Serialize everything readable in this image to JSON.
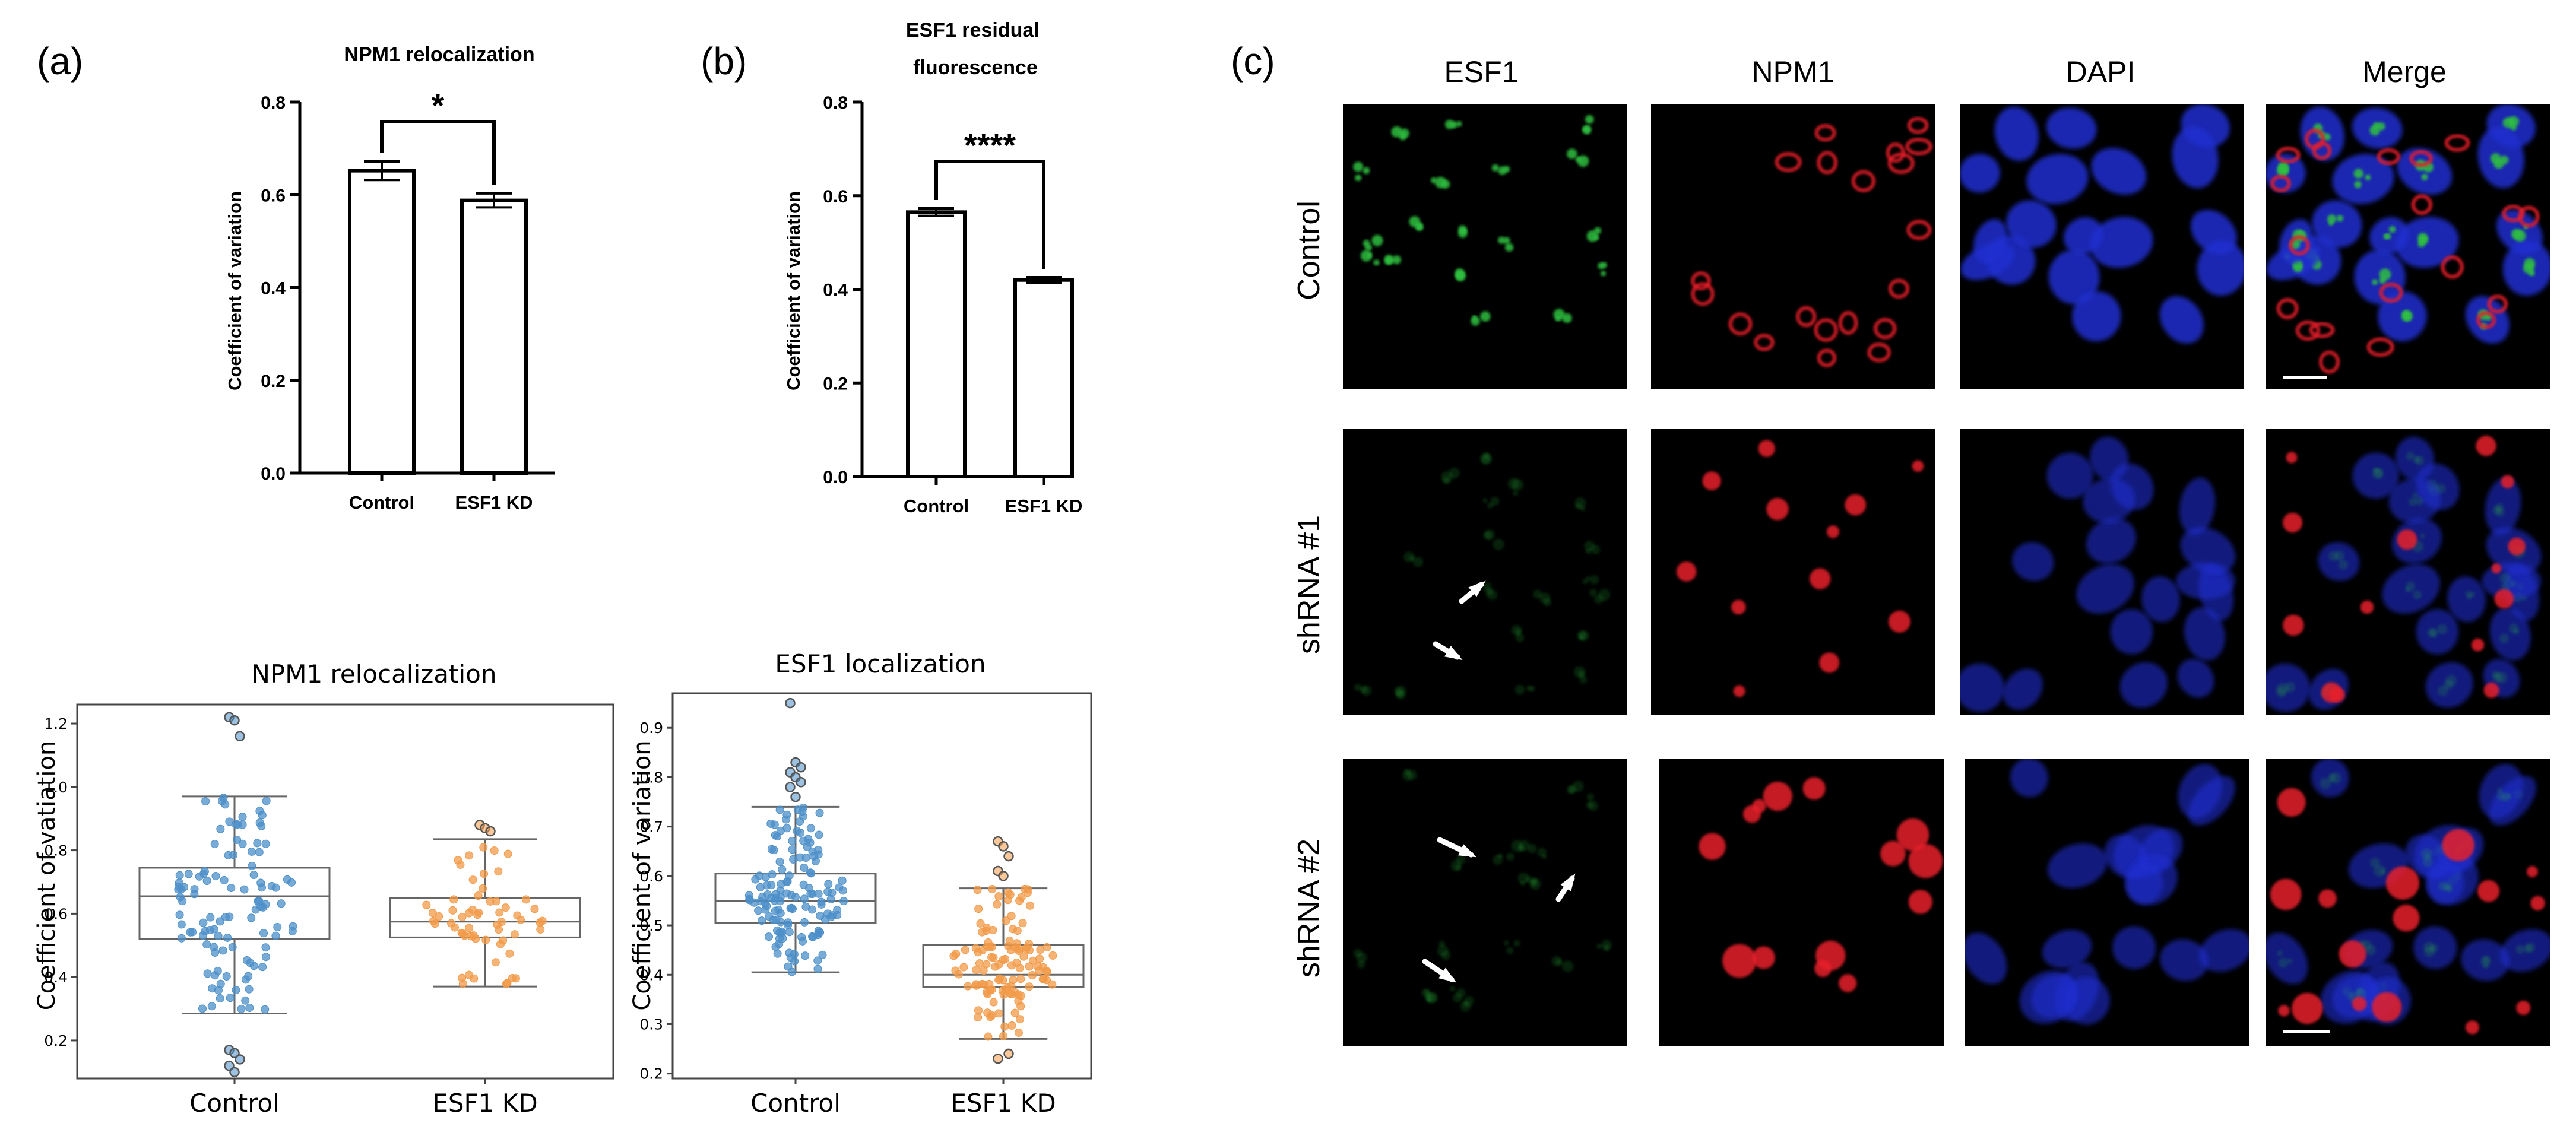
{
  "panels": {
    "a": "(a)",
    "b": "(b)",
    "c": "(c)"
  },
  "colors": {
    "control_points": "#4c8fc9",
    "kd_points": "#f29a48",
    "red_stain": "#e8202a",
    "green_stain": "#2fbf3f",
    "blue_stain": "#1f2fd0"
  },
  "chart_data": [
    {
      "id": "bar-a",
      "type": "bar",
      "title": "NPM1 relocalization",
      "xlabel": "",
      "ylabel": "Coefficient of variation",
      "categories": [
        "Control",
        "ESF1 KD"
      ],
      "values": [
        0.652,
        0.588
      ],
      "error": [
        0.02,
        0.015
      ],
      "ylim": [
        0,
        0.8
      ],
      "yticks": [
        "0.0",
        "0.2",
        "0.4",
        "0.6",
        "0.8"
      ],
      "significance": "*"
    },
    {
      "id": "bar-b",
      "type": "bar",
      "title": "ESF1 residual fluorescence",
      "xlabel": "",
      "ylabel": "Coefficient of variation",
      "categories": [
        "Control",
        "ESF1 KD"
      ],
      "values": [
        0.565,
        0.42
      ],
      "error": [
        0.008,
        0.006
      ],
      "ylim": [
        0,
        0.8
      ],
      "yticks": [
        "0.0",
        "0.2",
        "0.4",
        "0.6",
        "0.8"
      ],
      "significance": "****"
    },
    {
      "id": "box-a",
      "type": "box",
      "title": "NPM1 relocalization",
      "xlabel": "",
      "ylabel": "Coefficient of vatiation",
      "categories": [
        "Control",
        "ESF1 KD"
      ],
      "ylim": [
        0.08,
        1.26
      ],
      "yticks": [
        "0.2",
        "0.4",
        "0.6",
        "0.8",
        "1.0",
        "1.2"
      ],
      "boxes": [
        {
          "q1": 0.52,
          "median": 0.655,
          "q3": 0.745,
          "whisker_low": 0.285,
          "whisker_high": 0.97,
          "outliers": [
            1.22,
            1.21,
            1.16,
            0.17,
            0.16,
            0.14,
            0.12,
            0.1
          ],
          "n_points": 110
        },
        {
          "q1": 0.525,
          "median": 0.575,
          "q3": 0.65,
          "whisker_low": 0.37,
          "whisker_high": 0.835,
          "outliers": [
            0.88,
            0.87,
            0.86
          ],
          "n_points": 60
        }
      ]
    },
    {
      "id": "box-b",
      "type": "box",
      "title": "ESF1 localization",
      "xlabel": "",
      "ylabel": "Coefficient of variation",
      "categories": [
        "Control",
        "ESF1 KD"
      ],
      "ylim": [
        0.19,
        0.97
      ],
      "yticks": [
        "0.2",
        "0.3",
        "0.4",
        "0.5",
        "0.6",
        "0.7",
        "0.8",
        "0.9"
      ],
      "boxes": [
        {
          "q1": 0.505,
          "median": 0.55,
          "q3": 0.605,
          "whisker_low": 0.405,
          "whisker_high": 0.74,
          "outliers": [
            0.95,
            0.83,
            0.82,
            0.81,
            0.8,
            0.79,
            0.78,
            0.76
          ],
          "n_points": 140
        },
        {
          "q1": 0.375,
          "median": 0.4,
          "q3": 0.46,
          "whisker_low": 0.27,
          "whisker_high": 0.575,
          "outliers": [
            0.67,
            0.66,
            0.64,
            0.61,
            0.6,
            0.24,
            0.23
          ],
          "n_points": 120
        }
      ]
    }
  ],
  "micrograph": {
    "columns": [
      "ESF1",
      "NPM1",
      "DAPI",
      "Merge"
    ],
    "rows": [
      "Control",
      "shRNA #1",
      "shRNA #2"
    ]
  }
}
